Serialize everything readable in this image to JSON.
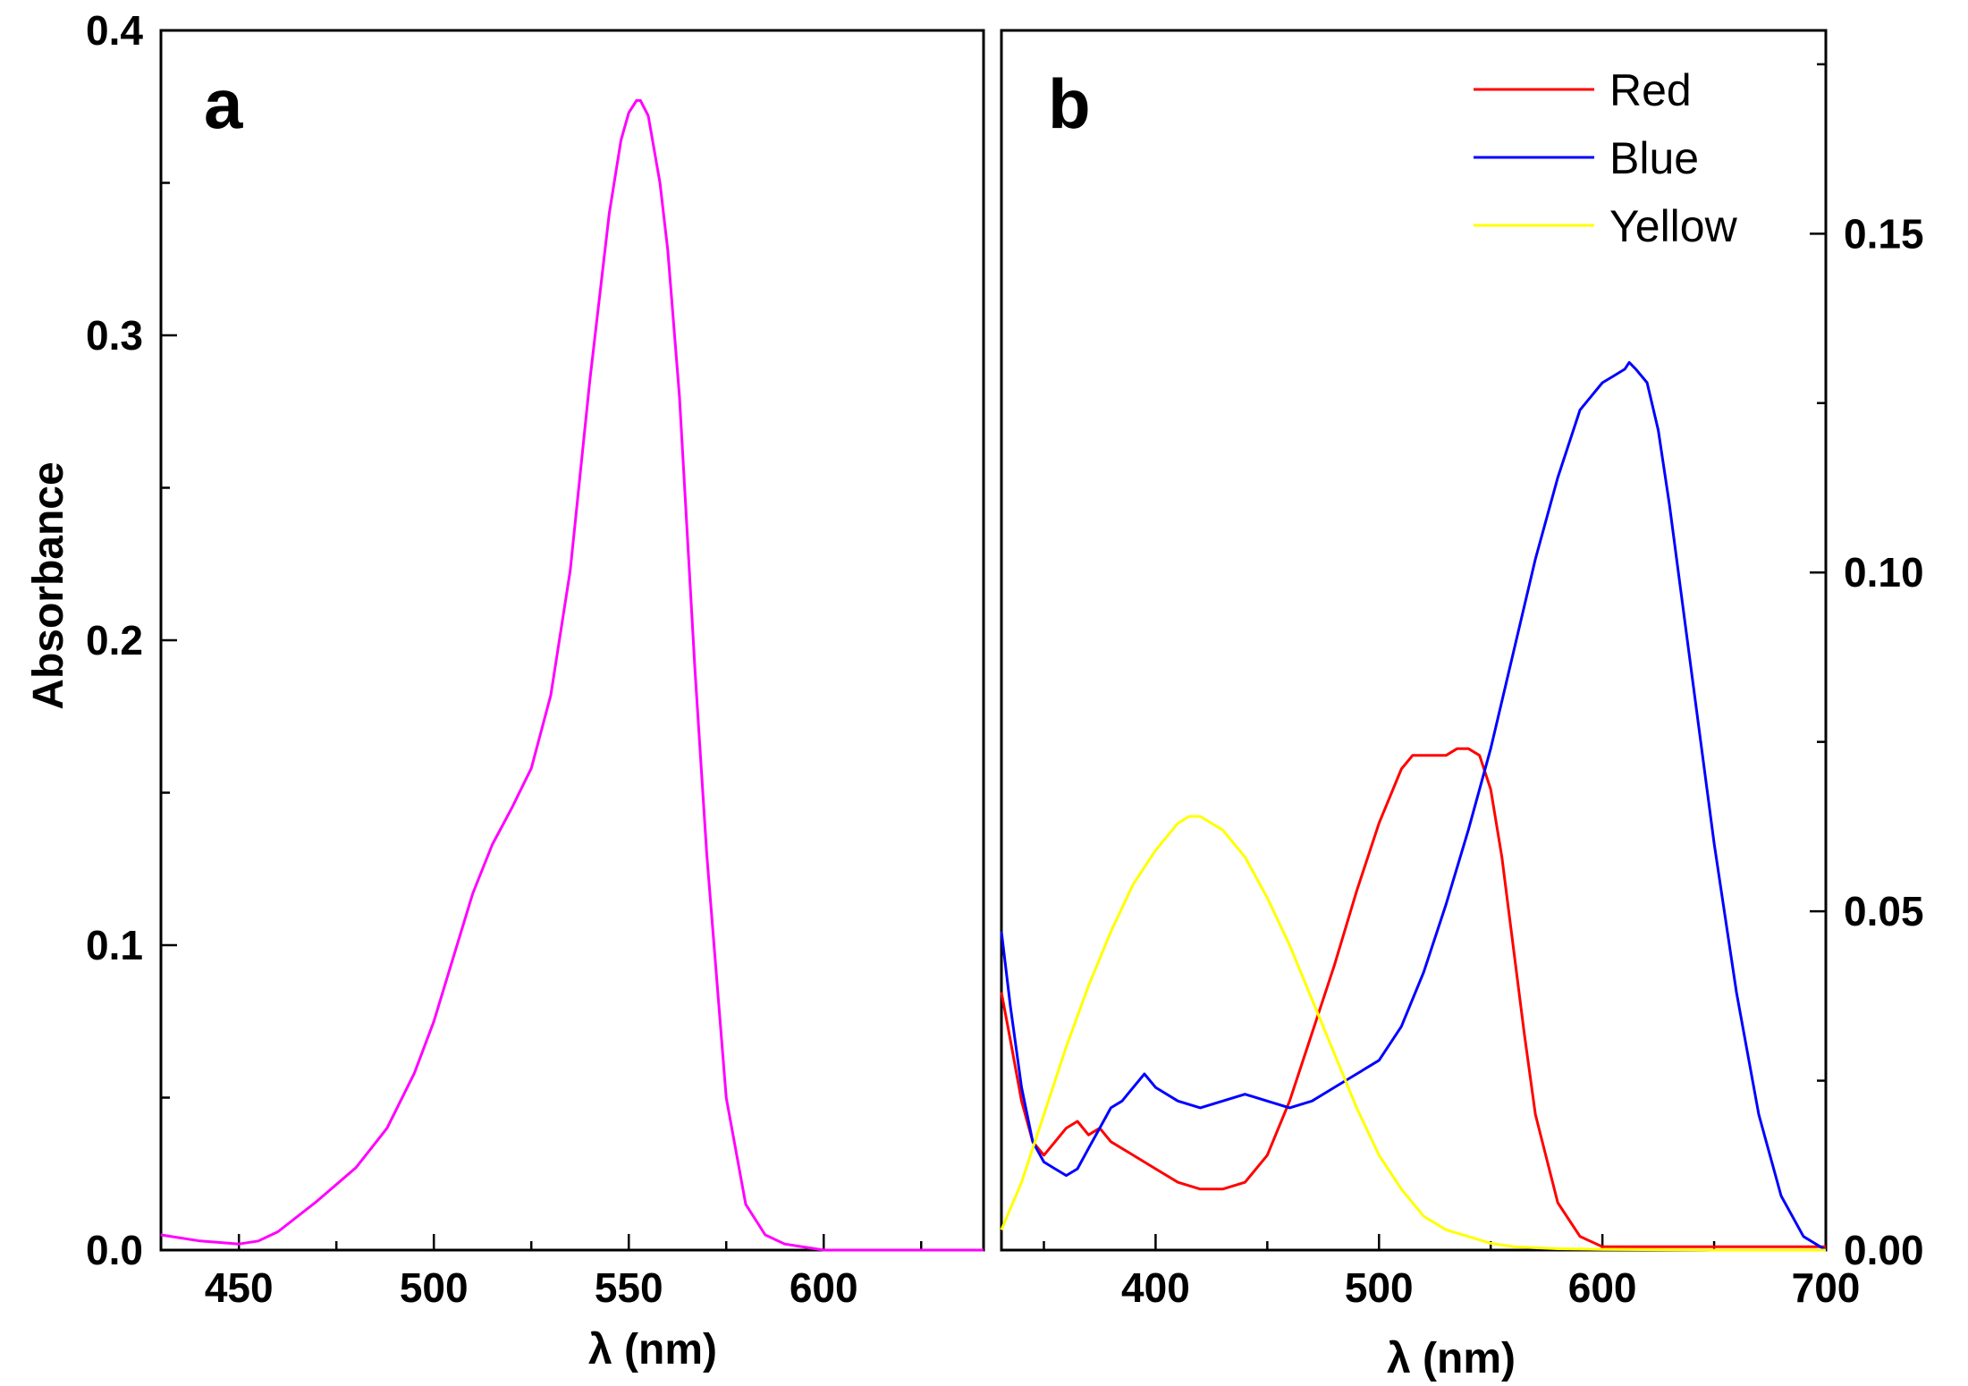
{
  "chart_data": [
    {
      "panel": "a",
      "type": "line",
      "xlabel": "λ (nm)",
      "ylabel": "Absorbance",
      "xlim": [
        430,
        641
      ],
      "ylim": [
        0,
        0.4
      ],
      "xticks": [
        450,
        500,
        550,
        600
      ],
      "xticklabels": [
        "450",
        "500",
        "550",
        "600"
      ],
      "yticks": [
        0.0,
        0.1,
        0.2,
        0.3,
        0.4
      ],
      "yticklabels": [
        "0.0",
        "0.1",
        "0.2",
        "0.3",
        "0.4"
      ],
      "series": [
        {
          "name": "Absorbance",
          "color": "#ff00ff",
          "x": [
            430,
            440,
            450,
            455,
            460,
            470,
            480,
            488,
            495,
            500,
            505,
            510,
            515,
            520,
            525,
            530,
            535,
            540,
            545,
            548,
            550,
            552,
            553,
            555,
            558,
            560,
            563,
            567,
            570,
            575,
            580,
            585,
            590,
            595,
            600,
            610,
            620,
            641
          ],
          "y": [
            0.005,
            0.003,
            0.002,
            0.003,
            0.006,
            0.016,
            0.027,
            0.04,
            0.058,
            0.075,
            0.096,
            0.117,
            0.133,
            0.145,
            0.158,
            0.182,
            0.223,
            0.285,
            0.34,
            0.364,
            0.373,
            0.377,
            0.377,
            0.372,
            0.35,
            0.328,
            0.28,
            0.19,
            0.13,
            0.05,
            0.015,
            0.005,
            0.002,
            0.001,
            0.0,
            0.0,
            0.0,
            0.0
          ]
        }
      ]
    },
    {
      "panel": "b",
      "type": "line",
      "xlabel": "λ (nm)",
      "xlim": [
        331,
        700
      ],
      "ylim": [
        0,
        0.18
      ],
      "xticks": [
        400,
        500,
        600,
        700
      ],
      "xticklabels": [
        "400",
        "500",
        "600",
        "700"
      ],
      "yticks": [
        0.0,
        0.05,
        0.1,
        0.15
      ],
      "yticklabels": [
        "0.00",
        "0.05",
        "0.10",
        "0.15"
      ],
      "legend_position": "top-right",
      "series": [
        {
          "name": "Red",
          "color": "#ff0000",
          "x": [
            331,
            335,
            340,
            345,
            350,
            355,
            360,
            365,
            370,
            375,
            380,
            390,
            400,
            410,
            420,
            430,
            440,
            450,
            460,
            470,
            480,
            490,
            500,
            510,
            515,
            520,
            525,
            530,
            535,
            540,
            545,
            550,
            555,
            560,
            565,
            570,
            580,
            590,
            600,
            620,
            650,
            700
          ],
          "y": [
            0.038,
            0.031,
            0.022,
            0.016,
            0.014,
            0.016,
            0.018,
            0.019,
            0.017,
            0.018,
            0.016,
            0.014,
            0.012,
            0.01,
            0.009,
            0.009,
            0.01,
            0.014,
            0.022,
            0.032,
            0.042,
            0.053,
            0.063,
            0.071,
            0.073,
            0.073,
            0.073,
            0.073,
            0.074,
            0.074,
            0.073,
            0.068,
            0.058,
            0.045,
            0.032,
            0.02,
            0.007,
            0.002,
            0.0005,
            0.0005,
            0.0005,
            0.0005
          ]
        },
        {
          "name": "Blue",
          "color": "#0000ff",
          "x": [
            331,
            335,
            340,
            345,
            350,
            355,
            360,
            365,
            370,
            375,
            380,
            385,
            390,
            395,
            400,
            410,
            420,
            430,
            440,
            450,
            460,
            470,
            480,
            490,
            500,
            510,
            520,
            530,
            540,
            550,
            560,
            570,
            580,
            590,
            600,
            605,
            610,
            612,
            615,
            620,
            625,
            630,
            640,
            650,
            660,
            670,
            680,
            690,
            700
          ],
          "y": [
            0.047,
            0.036,
            0.024,
            0.016,
            0.013,
            0.012,
            0.011,
            0.012,
            0.015,
            0.018,
            0.021,
            0.022,
            0.024,
            0.026,
            0.024,
            0.022,
            0.021,
            0.022,
            0.023,
            0.022,
            0.021,
            0.022,
            0.024,
            0.026,
            0.028,
            0.033,
            0.041,
            0.051,
            0.062,
            0.074,
            0.088,
            0.102,
            0.114,
            0.124,
            0.128,
            0.129,
            0.13,
            0.131,
            0.13,
            0.128,
            0.121,
            0.11,
            0.085,
            0.06,
            0.038,
            0.02,
            0.008,
            0.002,
            0.0
          ]
        },
        {
          "name": "Yellow",
          "color": "#ffff00",
          "x": [
            331,
            340,
            350,
            360,
            370,
            380,
            390,
            400,
            410,
            415,
            420,
            430,
            440,
            450,
            460,
            470,
            480,
            490,
            500,
            510,
            520,
            530,
            540,
            550,
            560,
            580,
            600,
            650,
            700
          ],
          "y": [
            0.003,
            0.01,
            0.02,
            0.03,
            0.039,
            0.047,
            0.054,
            0.059,
            0.063,
            0.064,
            0.064,
            0.062,
            0.058,
            0.052,
            0.045,
            0.037,
            0.029,
            0.021,
            0.014,
            0.009,
            0.005,
            0.003,
            0.002,
            0.001,
            0.0005,
            0.0002,
            0.0001,
            0.0,
            0.0
          ]
        }
      ]
    }
  ],
  "panels": {
    "a": {
      "label": "a"
    },
    "b": {
      "label": "b"
    }
  }
}
